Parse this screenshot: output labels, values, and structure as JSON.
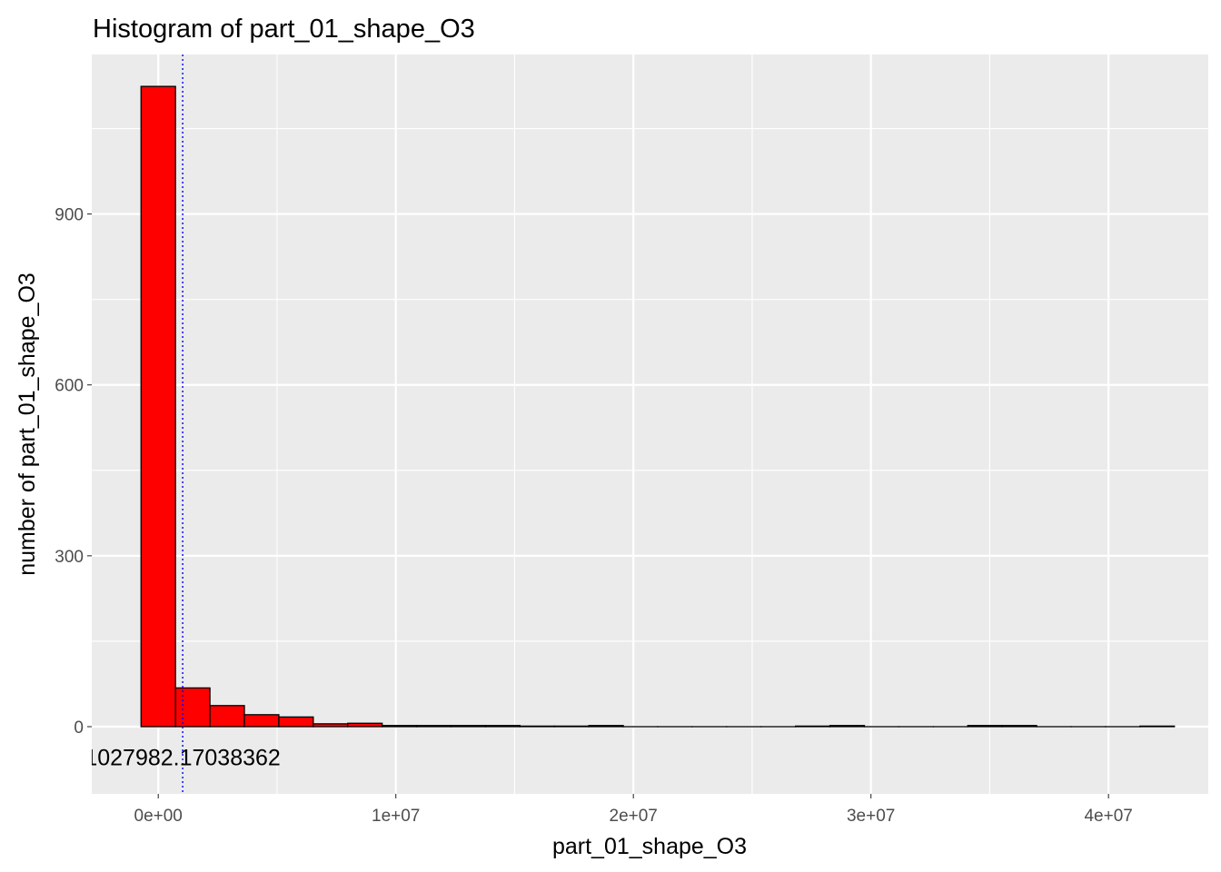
{
  "chart_data": {
    "type": "bar",
    "title": "Histogram of  part_01_shape_O3",
    "xlabel": "part_01_shape_O3",
    "ylabel": "number of  part_01_shape_O3",
    "xlim": [
      -2800000,
      44200000
    ],
    "ylim": [
      -118,
      1180
    ],
    "x_ticks": [
      0,
      10000000,
      20000000,
      30000000,
      40000000
    ],
    "x_tick_labels": [
      "0e+00",
      "1e+07",
      "2e+07",
      "3e+07",
      "4e+07"
    ],
    "y_ticks": [
      0,
      300,
      600,
      900
    ],
    "y_tick_labels": [
      "0",
      "300",
      "600",
      "900"
    ],
    "bin_width": 1450000,
    "bins": [
      {
        "x_start": -725000,
        "x_end": 725000,
        "count": 1124
      },
      {
        "x_start": 725000,
        "x_end": 2175000,
        "count": 68
      },
      {
        "x_start": 2175000,
        "x_end": 3625000,
        "count": 37
      },
      {
        "x_start": 3625000,
        "x_end": 5075000,
        "count": 21
      },
      {
        "x_start": 5075000,
        "x_end": 6525000,
        "count": 17
      },
      {
        "x_start": 6525000,
        "x_end": 7975000,
        "count": 5
      },
      {
        "x_start": 7975000,
        "x_end": 9425000,
        "count": 6
      },
      {
        "x_start": 9425000,
        "x_end": 10875000,
        "count": 2
      },
      {
        "x_start": 10875000,
        "x_end": 12325000,
        "count": 2
      },
      {
        "x_start": 12325000,
        "x_end": 13775000,
        "count": 2
      },
      {
        "x_start": 13775000,
        "x_end": 15225000,
        "count": 2
      },
      {
        "x_start": 15225000,
        "x_end": 16675000,
        "count": 1
      },
      {
        "x_start": 16675000,
        "x_end": 18125000,
        "count": 1
      },
      {
        "x_start": 18125000,
        "x_end": 19575000,
        "count": 2
      },
      {
        "x_start": 19575000,
        "x_end": 21025000,
        "count": 0
      },
      {
        "x_start": 21025000,
        "x_end": 22475000,
        "count": 0
      },
      {
        "x_start": 22475000,
        "x_end": 23925000,
        "count": 0
      },
      {
        "x_start": 23925000,
        "x_end": 25375000,
        "count": 0
      },
      {
        "x_start": 25375000,
        "x_end": 26825000,
        "count": 0
      },
      {
        "x_start": 26825000,
        "x_end": 28275000,
        "count": 1
      },
      {
        "x_start": 28275000,
        "x_end": 29725000,
        "count": 2
      },
      {
        "x_start": 29725000,
        "x_end": 31175000,
        "count": 0
      },
      {
        "x_start": 31175000,
        "x_end": 32625000,
        "count": 0
      },
      {
        "x_start": 32625000,
        "x_end": 34075000,
        "count": 0
      },
      {
        "x_start": 34075000,
        "x_end": 35525000,
        "count": 2
      },
      {
        "x_start": 35525000,
        "x_end": 36975000,
        "count": 2
      },
      {
        "x_start": 36975000,
        "x_end": 38425000,
        "count": 0
      },
      {
        "x_start": 38425000,
        "x_end": 39875000,
        "count": 0
      },
      {
        "x_start": 39875000,
        "x_end": 41325000,
        "count": 0
      },
      {
        "x_start": 41325000,
        "x_end": 42775000,
        "count": 1
      }
    ],
    "bar_fill": "#ff0000",
    "bar_outline": "#000000",
    "panel_background": "#ebebeb",
    "grid_color": "#ffffff",
    "vline": {
      "x": 1027982.17038362,
      "color": "#0000ff",
      "style": "dotted"
    },
    "annotation": {
      "text": "1027982.17038362",
      "x": 1027982.17038362,
      "y": -55
    },
    "grid": true,
    "legend": "none"
  }
}
